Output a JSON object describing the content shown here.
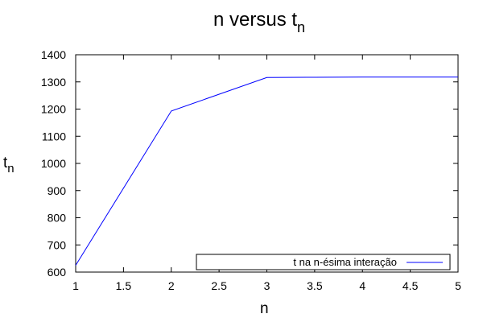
{
  "chart_data": {
    "type": "line",
    "title": {
      "main": "n versus t",
      "sub": "n"
    },
    "xlabel": "n",
    "ylabel": {
      "main": "t",
      "sub": "n"
    },
    "xlim": [
      1,
      5
    ],
    "ylim": [
      600,
      1400
    ],
    "xticks": [
      "1",
      "1.5",
      "2",
      "2.5",
      "3",
      "3.5",
      "4",
      "4.5",
      "5"
    ],
    "yticks": [
      "600",
      "700",
      "800",
      "900",
      "1000",
      "1100",
      "1200",
      "1300",
      "1400"
    ],
    "grid": false,
    "legend_position": "bottom-right",
    "series": [
      {
        "name": "t na n-ésima interação",
        "color": "#0000ff",
        "x": [
          1,
          2,
          3,
          3.5,
          4,
          5
        ],
        "y": [
          625,
          1193,
          1316,
          1317,
          1318,
          1318
        ]
      }
    ]
  }
}
